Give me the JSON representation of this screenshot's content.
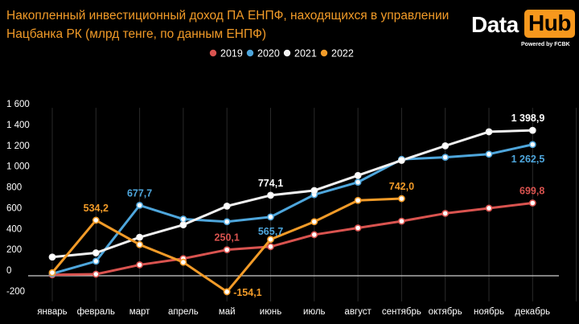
{
  "title": "Накопленный инвестиционный доход ПА ЕНПФ, находящихся в управлении Нацбанка РК (млрд тенге, по данным ЕНПФ)",
  "logo": {
    "word1": "Data",
    "word2": "Hub",
    "tagline": "Powered by FCBK"
  },
  "chart_data": {
    "type": "line",
    "categories": [
      "январь",
      "февраль",
      "март",
      "апрель",
      "май",
      "июнь",
      "июль",
      "август",
      "сентябрь",
      "октябрь",
      "ноябрь",
      "декабрь"
    ],
    "ylim": [
      -200,
      1600
    ],
    "yticks": [
      -200,
      0,
      200,
      400,
      600,
      800,
      1000,
      1200,
      1400,
      1600
    ],
    "ytick_labels": [
      "-200",
      "0",
      "200",
      "400",
      "600",
      "800",
      "1 000",
      "1 200",
      "1 400",
      "1 600"
    ],
    "grid": "vertical",
    "legend_position": "top-center",
    "series": [
      {
        "name": "2019",
        "color": "#d9534f",
        "values": [
          10,
          15,
          105,
          165,
          250.1,
          280,
          395,
          460,
          525,
          600,
          650,
          699.8
        ]
      },
      {
        "name": "2020",
        "color": "#4ea6dc",
        "values": [
          20,
          140,
          677.7,
          545,
          520,
          565.7,
          780,
          900,
          1120,
          1140,
          1170,
          1262.5
        ]
      },
      {
        "name": "2021",
        "color": "#f2f2f2",
        "values": [
          180,
          220,
          370,
          490,
          670,
          774.1,
          820,
          965,
          1110,
          1250,
          1385,
          1398.9
        ]
      },
      {
        "name": "2022",
        "color": "#f29b28",
        "values": [
          30,
          534.2,
          300,
          130,
          -154.1,
          350,
          520,
          725,
          742.0,
          null,
          null,
          null
        ]
      }
    ],
    "annotations": [
      {
        "text": "534,2",
        "series": "2022",
        "index": 1,
        "pos": "above"
      },
      {
        "text": "677,7",
        "series": "2020",
        "index": 2,
        "pos": "above"
      },
      {
        "text": "250,1",
        "series": "2019",
        "index": 4,
        "pos": "above"
      },
      {
        "text": "-154,1",
        "series": "2022",
        "index": 4,
        "pos": "right"
      },
      {
        "text": "774,1",
        "series": "2021",
        "index": 5,
        "pos": "above"
      },
      {
        "text": "565,7",
        "series": "2020",
        "index": 5,
        "pos": "below"
      },
      {
        "text": "742,0",
        "series": "2022",
        "index": 8,
        "pos": "above"
      },
      {
        "text": "1 398,9",
        "series": "2021",
        "index": 11,
        "pos": "above"
      },
      {
        "text": "1 262,5",
        "series": "2020",
        "index": 11,
        "pos": "below"
      },
      {
        "text": "699,8",
        "series": "2019",
        "index": 11,
        "pos": "above"
      }
    ]
  }
}
